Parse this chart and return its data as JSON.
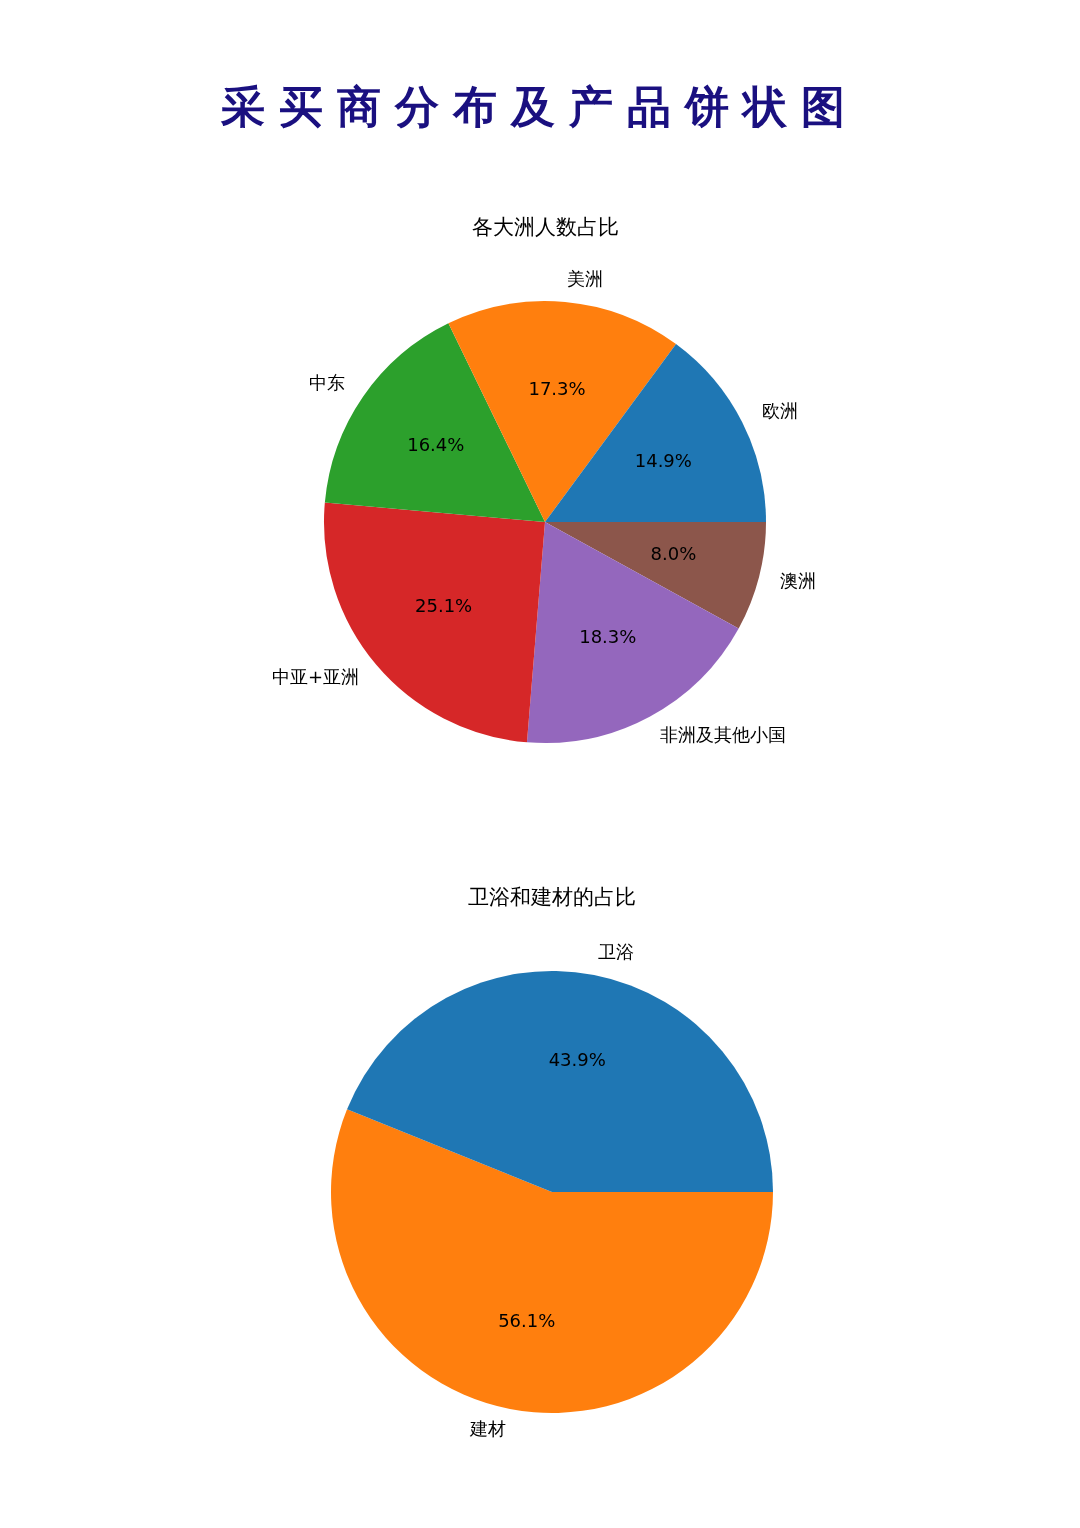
{
  "chart_data": [
    {
      "type": "pie",
      "title": "采买商分布及产品饼状图",
      "subtitle": "各大洲人数占比",
      "categories": [
        "欧洲",
        "美洲",
        "中东",
        "中亚+亚洲",
        "非洲及其他小国",
        "澳洲"
      ],
      "values": [
        14.9,
        17.3,
        16.4,
        25.1,
        18.3,
        8.0
      ],
      "colors": [
        "#1f77b4",
        "#ff7f0e",
        "#2ca02c",
        "#d62728",
        "#9467bd",
        "#8c564b"
      ],
      "value_labels": [
        "14.9%",
        "17.3%",
        "16.4%",
        "25.1%",
        "18.3%",
        "8.0%"
      ]
    },
    {
      "type": "pie",
      "title": "卫浴和建材的占比",
      "categories": [
        "卫浴",
        "建材"
      ],
      "values": [
        43.9,
        56.1
      ],
      "colors": [
        "#1f77b4",
        "#ff7f0e"
      ],
      "value_labels": [
        "43.9%",
        "56.1%"
      ]
    }
  ]
}
